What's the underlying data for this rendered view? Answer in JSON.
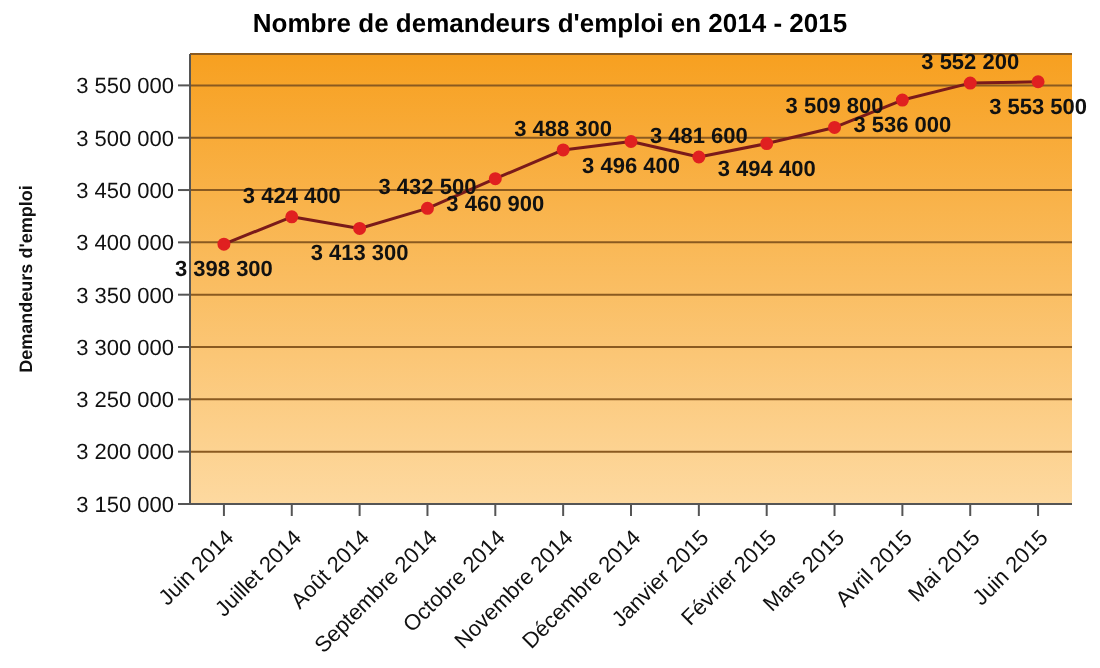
{
  "chart_data": {
    "type": "line",
    "title": "Nombre de demandeurs d'emploi en 2014 - 2015",
    "ylabel": "Demandeurs d'emploi",
    "categories": [
      "Juin 2014",
      "Juillet 2014",
      "Août 2014",
      "Septembre 2014",
      "Octobre 2014",
      "Novembre 2014",
      "Décembre 2014",
      "Janvier 2015",
      "Février 2015",
      "Mars 2015",
      "Avril 2015",
      "Mai 2015",
      "Juin 2015"
    ],
    "series": [
      {
        "color": "#7a1a1a",
        "values": [
          3398300,
          3424400,
          3413300,
          3432500,
          3460900,
          3488300,
          3496400,
          3481600,
          3494400,
          3509800,
          3536000,
          3552200,
          3553500
        ]
      }
    ],
    "ylim": [
      3150000,
      3580000
    ],
    "yticks": [
      3150000,
      3200000,
      3250000,
      3300000,
      3350000,
      3400000,
      3450000,
      3500000,
      3550000
    ],
    "grid": "y",
    "marker": "circle",
    "data_labels": true,
    "legend": false
  }
}
